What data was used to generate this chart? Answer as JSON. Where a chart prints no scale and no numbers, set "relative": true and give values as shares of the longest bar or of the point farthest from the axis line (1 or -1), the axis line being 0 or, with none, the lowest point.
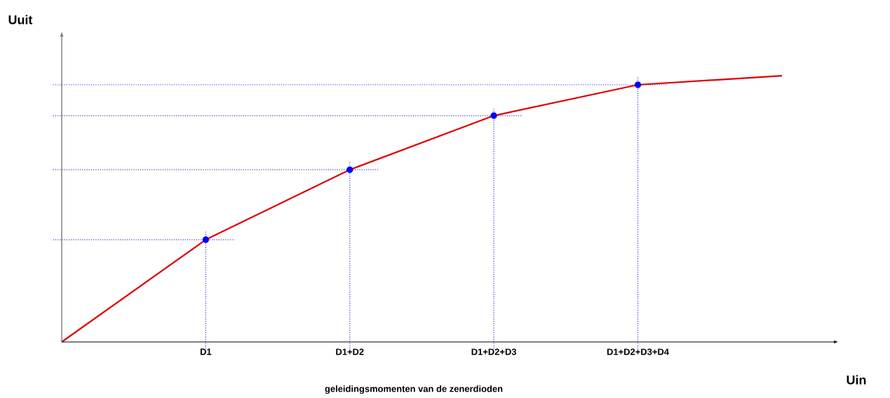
{
  "chart_data": {
    "type": "line",
    "relative": true,
    "xlabel": "Uin",
    "ylabel": "Uuit",
    "annotations": [
      "geleidingsmomenten van de zenerdioden"
    ],
    "categories": [
      null,
      "D1",
      "D1+D2",
      "D1+D2+D3",
      "D1+D2+D3+D4",
      null
    ],
    "tick_labels": "x",
    "line_style": "solid",
    "series": [
      {
        "color": "#e00000",
        "marker": "none",
        "values": [
          0,
          0.384,
          0.647,
          0.85,
          0.966,
          1.0
        ]
      },
      {
        "type": "scatter",
        "color": "#0000ff",
        "marker": "circle",
        "values": [
          null,
          0.384,
          0.647,
          0.85,
          0.966,
          null
        ]
      }
    ],
    "ref_lines": [
      {
        "axis": "x",
        "value": "D1",
        "color": "#3333dd",
        "line_style": "dotted"
      },
      {
        "axis": "x",
        "value": "D1+D2",
        "color": "#3333dd",
        "line_style": "dotted"
      },
      {
        "axis": "x",
        "value": "D1+D2+D3",
        "color": "#3333dd",
        "line_style": "dotted"
      },
      {
        "axis": "x",
        "value": "D1+D2+D3+D4",
        "color": "#3333dd",
        "line_style": "dotted"
      },
      {
        "axis": "y",
        "value": 0.384,
        "color": "#3333dd",
        "line_style": "dotted"
      },
      {
        "axis": "y",
        "value": 0.647,
        "color": "#3333dd",
        "line_style": "dotted"
      },
      {
        "axis": "y",
        "value": 0.85,
        "color": "#3333dd",
        "line_style": "dotted"
      },
      {
        "axis": "y",
        "value": 0.966,
        "color": "#3333dd",
        "line_style": "dotted"
      }
    ]
  }
}
